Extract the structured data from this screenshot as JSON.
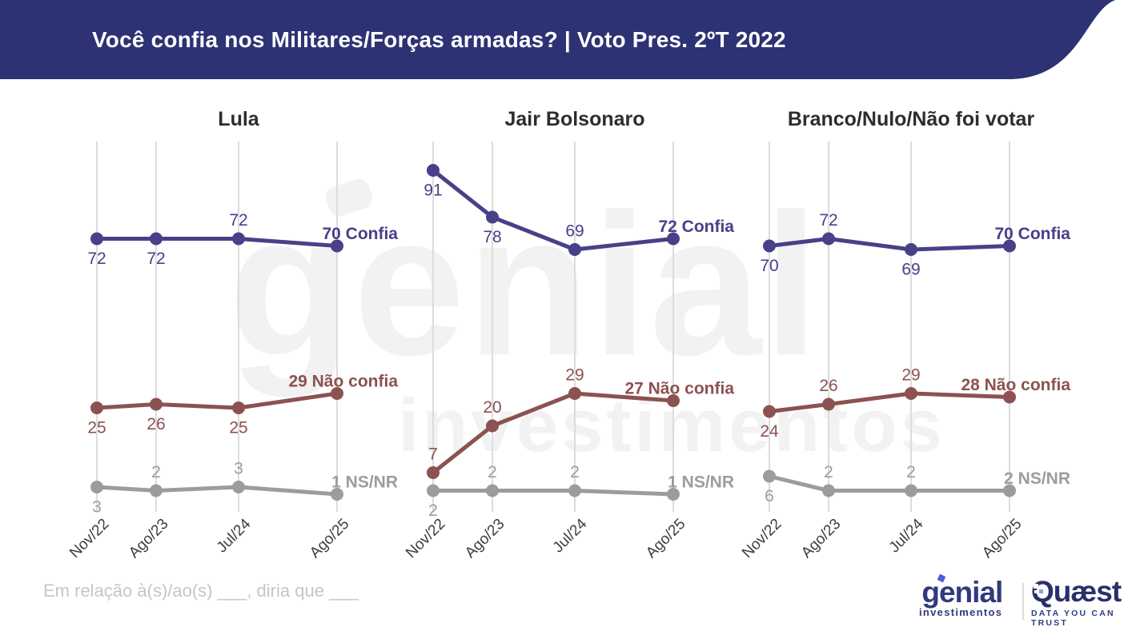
{
  "header": {
    "title": "Você confia nos Militares/Forças armadas? | Voto Pres. 2ºT 2022"
  },
  "chart_data": [
    {
      "type": "line",
      "title": "Lula",
      "x": [
        "Nov/22",
        "Ago/23",
        "Jul/24",
        "Ago/25"
      ],
      "ylim": [
        0,
        100
      ],
      "grid": "vertical",
      "legend_position": "end-of-line",
      "series": [
        {
          "name": "Confia",
          "color": "#474189",
          "values": [
            72,
            72,
            72,
            70
          ],
          "label_pos": [
            "below",
            "below",
            "above",
            "end"
          ],
          "end_label": "70 Confia"
        },
        {
          "name": "Não confia",
          "color": "#8C5250",
          "values": [
            25,
            26,
            25,
            29
          ],
          "label_pos": [
            "below",
            "below",
            "below",
            "end"
          ],
          "end_label": "29 Não confia"
        },
        {
          "name": "NS/NR",
          "color": "#9C9C9C",
          "values": [
            3,
            2,
            3,
            1
          ],
          "label_pos": [
            "below",
            "above",
            "above",
            "end"
          ],
          "end_label": "1 NS/NR"
        }
      ]
    },
    {
      "type": "line",
      "title": "Jair Bolsonaro",
      "x": [
        "Nov/22",
        "Ago/23",
        "Jul/24",
        "Ago/25"
      ],
      "ylim": [
        0,
        100
      ],
      "grid": "vertical",
      "legend_position": "end-of-line",
      "series": [
        {
          "name": "Confia",
          "color": "#474189",
          "values": [
            91,
            78,
            69,
            72
          ],
          "label_pos": [
            "below",
            "below",
            "above",
            "end"
          ],
          "end_label": "72 Confia"
        },
        {
          "name": "Não confia",
          "color": "#8C5250",
          "values": [
            7,
            20,
            29,
            27
          ],
          "label_pos": [
            "above",
            "above",
            "above",
            "end"
          ],
          "end_label": "27 Não confia"
        },
        {
          "name": "NS/NR",
          "color": "#9C9C9C",
          "values": [
            2,
            2,
            2,
            1
          ],
          "label_pos": [
            "below",
            "above",
            "above",
            "end"
          ],
          "end_label": "1 NS/NR"
        }
      ]
    },
    {
      "type": "line",
      "title": "Branco/Nulo/Não foi votar",
      "x": [
        "Nov/22",
        "Ago/23",
        "Jul/24",
        "Ago/25"
      ],
      "ylim": [
        0,
        100
      ],
      "grid": "vertical",
      "legend_position": "end-of-line",
      "series": [
        {
          "name": "Confia",
          "color": "#474189",
          "values": [
            70,
            72,
            69,
            70
          ],
          "label_pos": [
            "below",
            "above",
            "below",
            "end"
          ],
          "end_label": "70 Confia"
        },
        {
          "name": "Não confia",
          "color": "#8C5250",
          "values": [
            24,
            26,
            29,
            28
          ],
          "label_pos": [
            "below",
            "above",
            "above",
            "end"
          ],
          "end_label": "28 Não confia"
        },
        {
          "name": "NS/NR",
          "color": "#9C9C9C",
          "values": [
            6,
            2,
            2,
            2
          ],
          "label_pos": [
            "below",
            "above",
            "above",
            "end"
          ],
          "end_label": "2 NS/NR"
        }
      ]
    }
  ],
  "footer": {
    "question": "Em relação à(s)/ao(s) ___, diria que ___"
  },
  "watermark": {
    "line1": "genial",
    "line2": "investimentos"
  },
  "logos": {
    "genial": {
      "name": "genial",
      "subtitle": "investimentos"
    },
    "quaest": {
      "name": "Quæst",
      "tagline": "DATA YOU CAN TRUST"
    }
  },
  "colors": {
    "header_bg": "#2D3274",
    "header_text": "#FFFFFF",
    "confia": "#474189",
    "nao_confia": "#8C5250",
    "nsnr": "#9C9C9C",
    "grid": "#DCDCDC",
    "axis_label": "#3C3C3C",
    "panel_title": "#2D2D2D",
    "footer_text": "#C6C6C6",
    "genial_navy": "#303A7C",
    "quaest_navy": "#28306A",
    "watermark": "#F2F2F2"
  }
}
